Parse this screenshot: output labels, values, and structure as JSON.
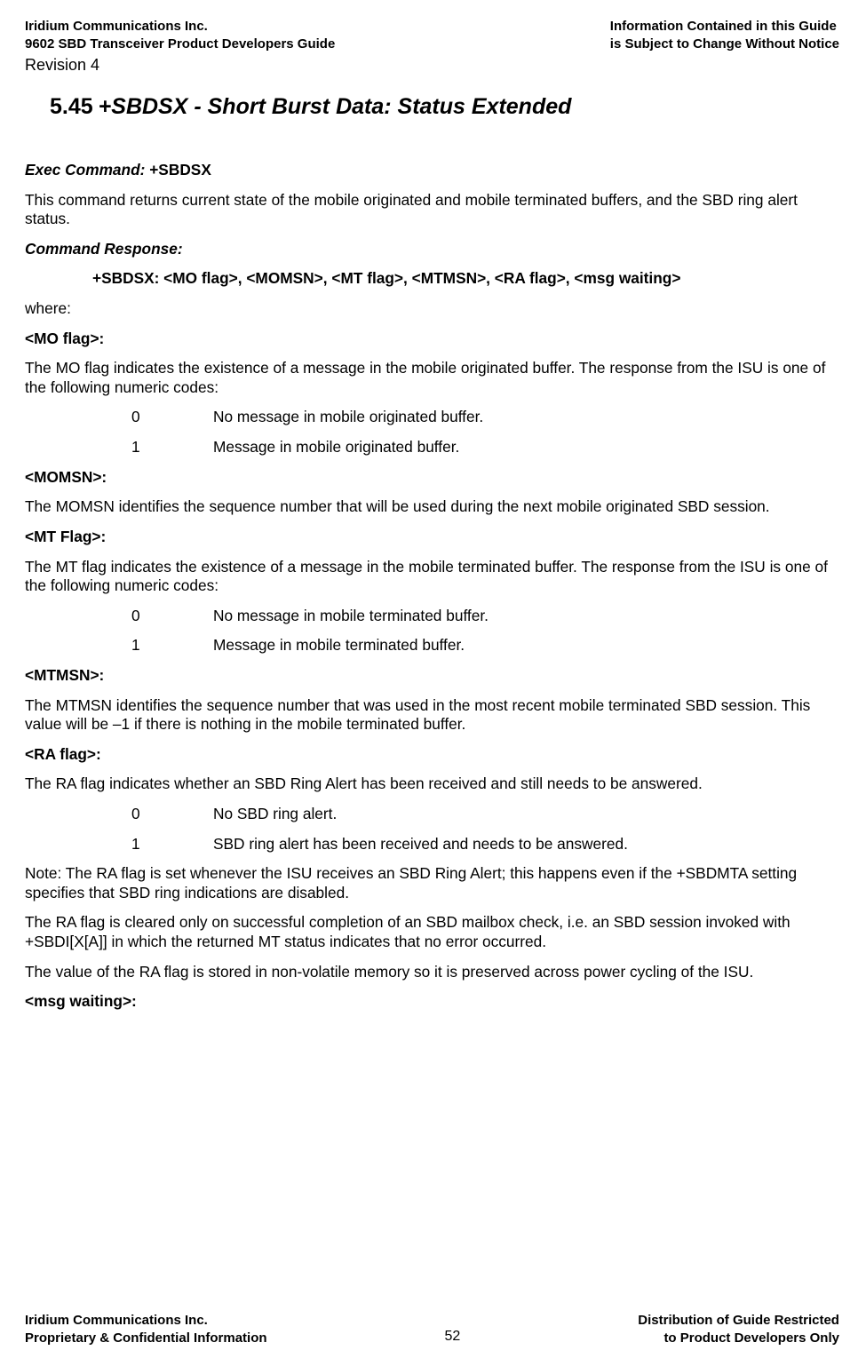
{
  "header": {
    "left_line1": "Iridium Communications Inc.",
    "left_line2": "9602 SBD Transceiver Product Developers Guide",
    "right_line1": "Information Contained in this Guide",
    "right_line2": "is Subject to Change Without Notice",
    "revision": "Revision 4"
  },
  "section": {
    "number": "5.45",
    "title": "+SBDSX - Short Burst Data: Status Extended"
  },
  "body": {
    "exec_label": "Exec Command: ",
    "exec_cmd": "+SBDSX",
    "exec_desc": "This command returns current state of the mobile originated and mobile terminated buffers, and the SBD ring alert status.",
    "resp_label": "Command Response:",
    "resp_syntax": "+SBDSX: <MO flag>, <MOMSN>, <MT flag>, <MTMSN>, <RA flag>, <msg waiting>",
    "where": "where:",
    "mo_flag_h": "<MO flag>:",
    "mo_flag_desc": "The MO flag indicates the existence of a message in the mobile originated buffer.  The response from the ISU is one of the following numeric codes:",
    "mo_codes": [
      {
        "n": "0",
        "t": "No message in mobile originated buffer."
      },
      {
        "n": "1",
        "t": "Message in mobile originated buffer."
      }
    ],
    "momsn_h": "<MOMSN>:",
    "momsn_desc": "The MOMSN identifies the sequence number that will be used during the next mobile originated SBD session.",
    "mt_flag_h": "<MT Flag>:",
    "mt_flag_desc": "The MT flag indicates the existence of a message in the mobile terminated buffer.  The response from the ISU is one of the following numeric codes:",
    "mt_codes": [
      {
        "n": "0",
        "t": "No message in mobile terminated buffer."
      },
      {
        "n": "1",
        "t": "Message in mobile terminated buffer."
      }
    ],
    "mtmsn_h": "<MTMSN>:",
    "mtmsn_desc": "The MTMSN identifies the sequence number that was used in the most recent mobile terminated SBD session.  This value will be –1 if there is nothing in the mobile terminated buffer.",
    "ra_flag_h": "<RA flag>:",
    "ra_flag_desc": "The RA flag indicates whether an SBD Ring Alert has been received and still needs to be answered.",
    "ra_codes": [
      {
        "n": "0",
        "t": "No SBD ring alert."
      },
      {
        "n": "1",
        "t": "SBD ring alert has been received and needs to be answered."
      }
    ],
    "ra_note": "Note:  The RA flag is set whenever the ISU receives an SBD Ring Alert; this happens even if the +SBDMTA setting specifies that SBD ring indications are disabled.",
    "ra_clear": "The RA flag is cleared only on successful completion of an SBD mailbox check, i.e. an SBD session invoked with +SBDI[X[A]] in which the returned MT status indicates that no error occurred.",
    "ra_nvm": "The value of the RA flag is stored in non-volatile memory so it is preserved across power cycling of the ISU.",
    "msg_waiting_h": "<msg waiting>:"
  },
  "footer": {
    "left_line1": "Iridium Communications Inc.",
    "left_line2": "Proprietary & Confidential Information",
    "page": "52",
    "right_line1": "Distribution of Guide Restricted",
    "right_line2": "to Product Developers Only"
  }
}
